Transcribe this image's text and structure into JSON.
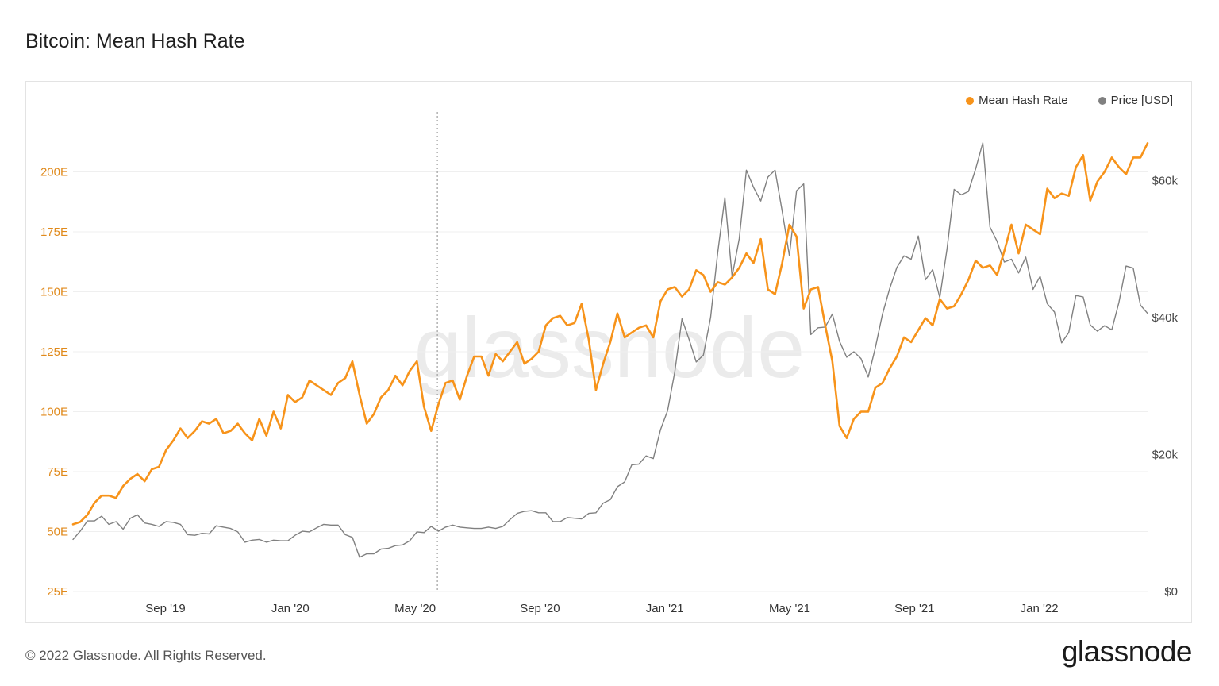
{
  "title": "Bitcoin: Mean Hash Rate",
  "watermark": "glassnode",
  "footer": "© 2022 Glassnode. All Rights Reserved.",
  "brand": "glassnode",
  "colors": {
    "hash": "#f7931a",
    "price": "#808080",
    "grid": "#efefef",
    "axis_left": "#e08a1c",
    "axis_right": "#444444"
  },
  "legend": [
    {
      "label": "Mean Hash Rate",
      "color": "#f7931a"
    },
    {
      "label": "Price [USD]",
      "color": "#808080"
    }
  ],
  "chart_data": {
    "type": "line",
    "title": "Bitcoin: Mean Hash Rate",
    "x_tick_labels": [
      "Sep '19",
      "Jan '20",
      "May '20",
      "Sep '20",
      "Jan '21",
      "May '21",
      "Sep '21",
      "Jan '22"
    ],
    "y_left": {
      "ticks": [
        "25E",
        "50E",
        "75E",
        "100E",
        "125E",
        "150E",
        "175E",
        "200E"
      ],
      "range": [
        25,
        225
      ]
    },
    "y_right": {
      "ticks": [
        "$0",
        "$20k",
        "$40k",
        "$60k"
      ],
      "range": [
        0,
        70000
      ]
    },
    "grid": true,
    "legend_position": "top-right",
    "marker_line": "May '20",
    "series": [
      {
        "name": "Mean Hash Rate",
        "axis": "left",
        "values": [
          53,
          54,
          57,
          62,
          65,
          65,
          64,
          69,
          72,
          74,
          71,
          76,
          77,
          84,
          88,
          93,
          89,
          92,
          96,
          95,
          97,
          91,
          92,
          95,
          91,
          88,
          97,
          90,
          100,
          93,
          107,
          104,
          106,
          113,
          111,
          109,
          107,
          112,
          114,
          121,
          107,
          95,
          99,
          106,
          109,
          115,
          111,
          117,
          121,
          102,
          92,
          103,
          112,
          113,
          105,
          115,
          123,
          123,
          115,
          124,
          121,
          125,
          129,
          120,
          122,
          125,
          136,
          139,
          140,
          136,
          137,
          145,
          130,
          109,
          120,
          129,
          141,
          131,
          133,
          135,
          136,
          131,
          146,
          151,
          152,
          148,
          151,
          159,
          157,
          150,
          154,
          153,
          156,
          160,
          166,
          162,
          172,
          151,
          149,
          162,
          178,
          173,
          143,
          151,
          152,
          136,
          121,
          94,
          89,
          97,
          100,
          100,
          110,
          112,
          118,
          123,
          131,
          129,
          134,
          139,
          136,
          147,
          143,
          144,
          149,
          155,
          163,
          160,
          161,
          157,
          167,
          178,
          166,
          178,
          176,
          174,
          193,
          189,
          191,
          190,
          202,
          207,
          188,
          196,
          200,
          206,
          202,
          199,
          206,
          206,
          212
        ]
      },
      {
        "name": "Price [USD]",
        "axis": "right",
        "values": [
          7600,
          8800,
          10300,
          10300,
          11000,
          9800,
          10200,
          9100,
          10700,
          11200,
          10000,
          9800,
          9500,
          10200,
          10100,
          9800,
          8300,
          8200,
          8500,
          8400,
          9600,
          9400,
          9200,
          8700,
          7200,
          7500,
          7600,
          7200,
          7500,
          7400,
          7400,
          8200,
          8800,
          8700,
          9300,
          9800,
          9700,
          9700,
          8300,
          7900,
          5000,
          5500,
          5500,
          6200,
          6300,
          6700,
          6800,
          7400,
          8700,
          8600,
          9500,
          8800,
          9400,
          9700,
          9400,
          9300,
          9200,
          9200,
          9400,
          9200,
          9500,
          10500,
          11400,
          11700,
          11800,
          11500,
          11500,
          10200,
          10200,
          10800,
          10700,
          10600,
          11400,
          11500,
          12900,
          13400,
          15300,
          16000,
          18500,
          18600,
          19800,
          19400,
          23600,
          26400,
          32000,
          39800,
          36800,
          33500,
          34500,
          40000,
          49500,
          57500,
          46000,
          51500,
          61500,
          59000,
          57000,
          60500,
          61500,
          55500,
          49000,
          58500,
          59500,
          37500,
          38500,
          38600,
          40500,
          36500,
          34200,
          35000,
          34000,
          31300,
          35600,
          40500,
          44200,
          47300,
          49000,
          48500,
          51900,
          45500,
          47000,
          42900,
          50000,
          58700,
          57900,
          58400,
          61700,
          65500,
          53200,
          51100,
          48100,
          48500,
          46500,
          48800,
          44100,
          46000,
          42000,
          40800,
          36300,
          37800,
          43200,
          43000,
          38900,
          38000,
          38800,
          38200,
          42200,
          47500,
          47200,
          41800,
          40600
        ]
      }
    ]
  }
}
